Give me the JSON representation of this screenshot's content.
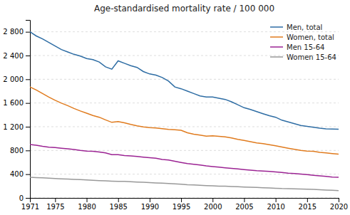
{
  "chart_data": {
    "type": "line",
    "title": "Age-standardised mortality rate / 100 000",
    "x": [
      1971,
      1972,
      1973,
      1974,
      1975,
      1976,
      1977,
      1978,
      1979,
      1980,
      1981,
      1982,
      1983,
      1984,
      1985,
      1986,
      1987,
      1988,
      1989,
      1990,
      1991,
      1992,
      1993,
      1994,
      1995,
      1996,
      1997,
      1998,
      1999,
      2000,
      2001,
      2002,
      2003,
      2004,
      2005,
      2006,
      2007,
      2008,
      2009,
      2010,
      2011,
      2012,
      2013,
      2014,
      2015,
      2016,
      2017,
      2018,
      2019,
      2020
    ],
    "series": [
      {
        "name": "Men, total",
        "color": "#2e6da4",
        "values": [
          2800,
          2730,
          2680,
          2620,
          2560,
          2500,
          2460,
          2420,
          2390,
          2350,
          2330,
          2290,
          2210,
          2170,
          2310,
          2270,
          2230,
          2200,
          2130,
          2090,
          2070,
          2030,
          1970,
          1870,
          1840,
          1800,
          1760,
          1720,
          1700,
          1700,
          1680,
          1660,
          1620,
          1570,
          1520,
          1490,
          1455,
          1420,
          1385,
          1360,
          1310,
          1280,
          1250,
          1220,
          1205,
          1190,
          1175,
          1165,
          1162,
          1158
        ]
      },
      {
        "name": "Women, total",
        "color": "#e07b1e",
        "values": [
          1870,
          1820,
          1760,
          1700,
          1645,
          1598,
          1555,
          1508,
          1465,
          1428,
          1390,
          1360,
          1315,
          1274,
          1288,
          1265,
          1238,
          1215,
          1198,
          1185,
          1178,
          1168,
          1155,
          1148,
          1140,
          1098,
          1075,
          1058,
          1040,
          1048,
          1038,
          1028,
          1012,
          988,
          968,
          948,
          928,
          915,
          898,
          878,
          858,
          838,
          820,
          800,
          788,
          786,
          768,
          758,
          748,
          738
        ]
      },
      {
        "name": "Men 15-64",
        "color": "#9b2393",
        "values": [
          900,
          888,
          870,
          855,
          848,
          838,
          828,
          815,
          800,
          788,
          785,
          775,
          758,
          728,
          728,
          715,
          708,
          698,
          688,
          678,
          668,
          648,
          638,
          618,
          598,
          578,
          568,
          555,
          540,
          528,
          518,
          508,
          498,
          488,
          478,
          468,
          458,
          452,
          448,
          438,
          428,
          418,
          412,
          402,
          392,
          382,
          372,
          362,
          352,
          348
        ]
      },
      {
        "name": "Women 15-64",
        "color": "#999999",
        "values": [
          348,
          342,
          338,
          332,
          328,
          322,
          318,
          312,
          308,
          304,
          298,
          292,
          288,
          283,
          280,
          278,
          272,
          268,
          263,
          258,
          252,
          248,
          243,
          238,
          232,
          222,
          218,
          213,
          208,
          203,
          198,
          198,
          193,
          188,
          183,
          180,
          176,
          172,
          168,
          163,
          158,
          156,
          152,
          150,
          146,
          143,
          138,
          133,
          128,
          123
        ]
      }
    ],
    "xlim": [
      1971,
      2020
    ],
    "ylim": [
      0,
      3000
    ],
    "xticks": [
      1971,
      1975,
      1980,
      1985,
      1990,
      1995,
      2000,
      2005,
      2010,
      2015,
      2020
    ],
    "yticks": [
      0,
      400,
      800,
      {
        "value": 1200,
        "label": "1 200"
      },
      {
        "value": 1600,
        "label": "1 600"
      },
      {
        "value": 2000,
        "label": "2 000"
      },
      {
        "value": 2400,
        "label": "2 400"
      },
      {
        "value": 2800,
        "label": "2 800"
      }
    ],
    "grid": true,
    "legend": "upper right"
  }
}
